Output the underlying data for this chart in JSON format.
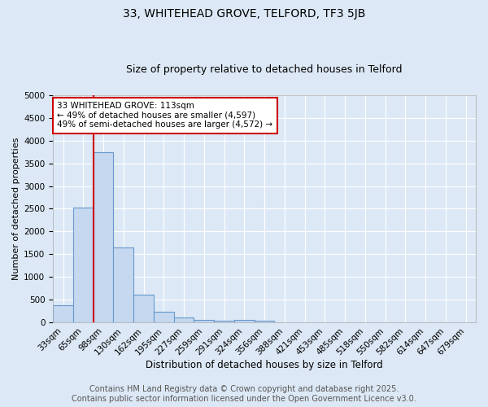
{
  "title1": "33, WHITEHEAD GROVE, TELFORD, TF3 5JB",
  "title2": "Size of property relative to detached houses in Telford",
  "xlabel": "Distribution of detached houses by size in Telford",
  "ylabel": "Number of detached properties",
  "bar_labels": [
    "33sqm",
    "65sqm",
    "98sqm",
    "130sqm",
    "162sqm",
    "195sqm",
    "227sqm",
    "259sqm",
    "291sqm",
    "324sqm",
    "356sqm",
    "388sqm",
    "421sqm",
    "453sqm",
    "485sqm",
    "518sqm",
    "550sqm",
    "582sqm",
    "614sqm",
    "647sqm",
    "679sqm"
  ],
  "bar_values": [
    380,
    2530,
    3750,
    1650,
    610,
    230,
    105,
    50,
    35,
    50,
    35,
    0,
    0,
    0,
    0,
    0,
    0,
    0,
    0,
    0,
    0
  ],
  "bar_color": "#c5d8f0",
  "bar_edge_color": "#6699cc",
  "background_color": "#dce8f5",
  "grid_color": "#ffffff",
  "vline_color": "#cc0000",
  "vline_x_index": 2.0,
  "ylim": [
    0,
    5000
  ],
  "yticks": [
    0,
    500,
    1000,
    1500,
    2000,
    2500,
    3000,
    3500,
    4000,
    4500,
    5000
  ],
  "annotation_box_text": "33 WHITEHEAD GROVE: 113sqm\n← 49% of detached houses are smaller (4,597)\n49% of semi-detached houses are larger (4,572) →",
  "annotation_box_color": "#cc0000",
  "annotation_box_bg": "#ffffff",
  "footer_line1": "Contains HM Land Registry data © Crown copyright and database right 2025.",
  "footer_line2": "Contains public sector information licensed under the Open Government Licence v3.0.",
  "title1_fontsize": 10,
  "title2_fontsize": 9,
  "xlabel_fontsize": 8.5,
  "ylabel_fontsize": 8,
  "tick_fontsize": 7.5,
  "annotation_fontsize": 7.5,
  "footer_fontsize": 7
}
